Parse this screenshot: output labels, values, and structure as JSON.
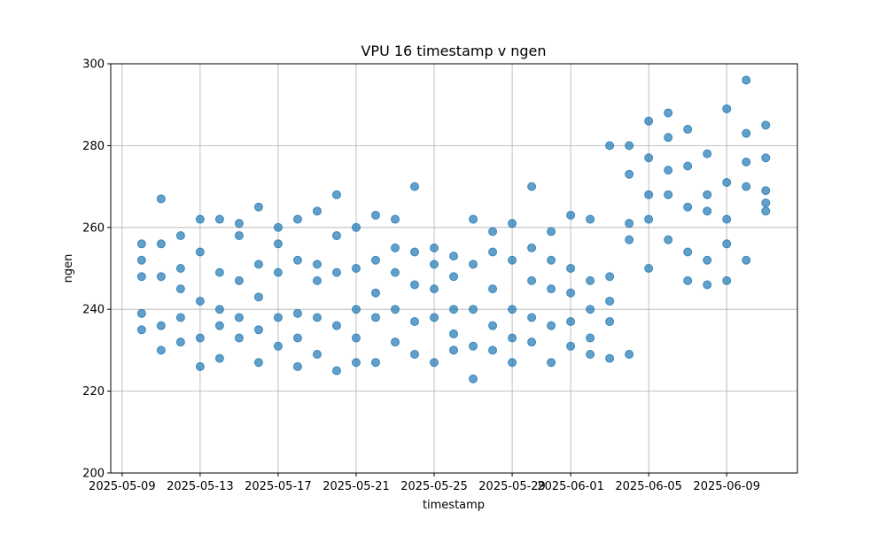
{
  "chart_data": {
    "type": "scatter",
    "title": "VPU 16 timestamp v ngen",
    "xlabel": "timestamp",
    "ylabel": "ngen",
    "xlim": [
      "2025-05-08T10:00",
      "2025-06-12T15:00"
    ],
    "xticks": [
      "2025-05-09",
      "2025-05-13",
      "2025-05-17",
      "2025-05-21",
      "2025-05-25",
      "2025-05-29",
      "2025-06-01",
      "2025-06-05",
      "2025-06-09"
    ],
    "ylim": [
      200,
      300
    ],
    "yticks": [
      200,
      220,
      240,
      260,
      280,
      300
    ],
    "grid": true,
    "series": [
      {
        "name": "ngen",
        "color": "#1f77b4",
        "x": [
          "2025-05-10",
          "2025-05-10",
          "2025-05-10",
          "2025-05-10",
          "2025-05-10",
          "2025-05-11",
          "2025-05-11",
          "2025-05-11",
          "2025-05-11",
          "2025-05-11",
          "2025-05-12",
          "2025-05-12",
          "2025-05-12",
          "2025-05-12",
          "2025-05-12",
          "2025-05-13",
          "2025-05-13",
          "2025-05-13",
          "2025-05-13",
          "2025-05-13",
          "2025-05-14",
          "2025-05-14",
          "2025-05-14",
          "2025-05-14",
          "2025-05-14",
          "2025-05-15",
          "2025-05-15",
          "2025-05-15",
          "2025-05-15",
          "2025-05-15",
          "2025-05-16",
          "2025-05-16",
          "2025-05-16",
          "2025-05-16",
          "2025-05-16",
          "2025-05-17",
          "2025-05-17",
          "2025-05-17",
          "2025-05-17",
          "2025-05-17",
          "2025-05-18",
          "2025-05-18",
          "2025-05-18",
          "2025-05-18",
          "2025-05-18",
          "2025-05-19",
          "2025-05-19",
          "2025-05-19",
          "2025-05-19",
          "2025-05-19",
          "2025-05-20",
          "2025-05-20",
          "2025-05-20",
          "2025-05-20",
          "2025-05-20",
          "2025-05-21",
          "2025-05-21",
          "2025-05-21",
          "2025-05-21",
          "2025-05-21",
          "2025-05-22",
          "2025-05-22",
          "2025-05-22",
          "2025-05-22",
          "2025-05-22",
          "2025-05-23",
          "2025-05-23",
          "2025-05-23",
          "2025-05-23",
          "2025-05-23",
          "2025-05-24",
          "2025-05-24",
          "2025-05-24",
          "2025-05-24",
          "2025-05-24",
          "2025-05-25",
          "2025-05-25",
          "2025-05-25",
          "2025-05-25",
          "2025-05-25",
          "2025-05-26",
          "2025-05-26",
          "2025-05-26",
          "2025-05-26",
          "2025-05-26",
          "2025-05-27",
          "2025-05-27",
          "2025-05-27",
          "2025-05-27",
          "2025-05-27",
          "2025-05-28",
          "2025-05-28",
          "2025-05-28",
          "2025-05-28",
          "2025-05-28",
          "2025-05-29",
          "2025-05-29",
          "2025-05-29",
          "2025-05-29",
          "2025-05-29",
          "2025-05-30",
          "2025-05-30",
          "2025-05-30",
          "2025-05-30",
          "2025-05-30",
          "2025-05-31",
          "2025-05-31",
          "2025-05-31",
          "2025-05-31",
          "2025-05-31",
          "2025-06-01",
          "2025-06-01",
          "2025-06-01",
          "2025-06-01",
          "2025-06-01",
          "2025-06-02",
          "2025-06-02",
          "2025-06-02",
          "2025-06-02",
          "2025-06-02",
          "2025-06-03",
          "2025-06-03",
          "2025-06-03",
          "2025-06-03",
          "2025-06-03",
          "2025-06-04",
          "2025-06-04",
          "2025-06-04",
          "2025-06-04",
          "2025-06-04",
          "2025-06-05",
          "2025-06-05",
          "2025-06-05",
          "2025-06-05",
          "2025-06-05",
          "2025-06-06",
          "2025-06-06",
          "2025-06-06",
          "2025-06-06",
          "2025-06-06",
          "2025-06-07",
          "2025-06-07",
          "2025-06-07",
          "2025-06-07",
          "2025-06-07",
          "2025-06-08",
          "2025-06-08",
          "2025-06-08",
          "2025-06-08",
          "2025-06-08",
          "2025-06-09",
          "2025-06-09",
          "2025-06-09",
          "2025-06-09",
          "2025-06-09",
          "2025-06-10",
          "2025-06-10",
          "2025-06-10",
          "2025-06-10",
          "2025-06-10",
          "2025-06-11",
          "2025-06-11",
          "2025-06-11",
          "2025-06-11",
          "2025-06-11"
        ],
        "values": [
          239,
          256,
          248,
          235,
          252,
          230,
          267,
          248,
          236,
          256,
          245,
          258,
          232,
          250,
          238,
          226,
          262,
          242,
          254,
          233,
          240,
          262,
          228,
          249,
          236,
          258,
          238,
          261,
          247,
          233,
          227,
          265,
          251,
          235,
          243,
          260,
          231,
          249,
          238,
          256,
          226,
          262,
          252,
          239,
          233,
          247,
          264,
          229,
          238,
          251,
          225,
          268,
          249,
          236,
          258,
          227,
          250,
          240,
          233,
          260,
          263,
          227,
          244,
          252,
          238,
          262,
          232,
          249,
          240,
          255,
          229,
          270,
          254,
          237,
          246,
          227,
          251,
          238,
          255,
          245,
          230,
          253,
          240,
          234,
          248,
          223,
          262,
          240,
          231,
          251,
          230,
          259,
          245,
          236,
          254,
          227,
          261,
          240,
          233,
          252,
          270,
          232,
          247,
          238,
          255,
          227,
          259,
          245,
          236,
          252,
          231,
          263,
          244,
          237,
          250,
          229,
          262,
          240,
          233,
          247,
          228,
          280,
          248,
          237,
          242,
          229,
          280,
          261,
          273,
          257,
          286,
          250,
          277,
          262,
          268,
          288,
          257,
          282,
          268,
          274,
          284,
          247,
          265,
          254,
          275,
          278,
          246,
          264,
          252,
          268,
          289,
          247,
          262,
          271,
          256,
          296,
          252,
          283,
          270,
          276,
          277,
          264,
          269,
          285,
          266
        ]
      }
    ]
  }
}
